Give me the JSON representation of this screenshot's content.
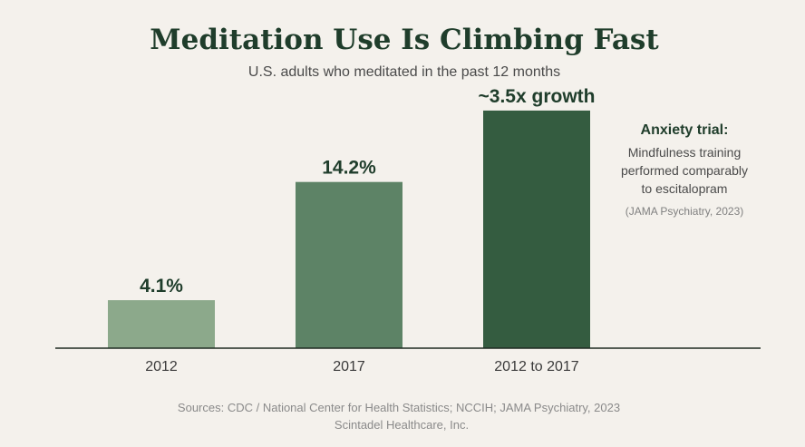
{
  "chart_data": {
    "type": "bar",
    "title": "Meditation Use Is Climbing Fast",
    "subtitle": "U.S. adults who meditated in the past 12 months",
    "categories": [
      "2012",
      "2017",
      "2012 to 2017"
    ],
    "values": [
      4.1,
      14.2,
      20.3
    ],
    "value_labels": [
      "4.1%",
      "14.2%",
      "~3.5x growth"
    ],
    "colors": [
      "#8ca98b",
      "#5d8366",
      "#345c40"
    ],
    "ylim": [
      0,
      22
    ],
    "grid": false,
    "legend": "none"
  },
  "annotation": {
    "title": "Anxiety trial:",
    "lines": [
      "Mindfulness training",
      "performed comparably",
      "to escitalopram"
    ],
    "citation": "(JAMA Psychiatry, 2023)"
  },
  "footer": {
    "sources": "Sources: CDC / National Center for Health Statistics; NCCIH; JAMA Psychiatry, 2023",
    "credit": "Scintadel Healthcare, Inc."
  }
}
